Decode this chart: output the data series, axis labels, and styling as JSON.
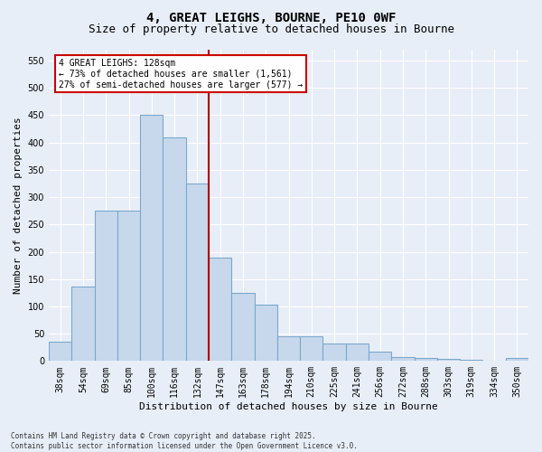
{
  "title": "4, GREAT LEIGHS, BOURNE, PE10 0WF",
  "subtitle": "Size of property relative to detached houses in Bourne",
  "xlabel": "Distribution of detached houses by size in Bourne",
  "ylabel": "Number of detached properties",
  "categories": [
    "38sqm",
    "54sqm",
    "69sqm",
    "85sqm",
    "100sqm",
    "116sqm",
    "132sqm",
    "147sqm",
    "163sqm",
    "178sqm",
    "194sqm",
    "210sqm",
    "225sqm",
    "241sqm",
    "256sqm",
    "272sqm",
    "288sqm",
    "303sqm",
    "319sqm",
    "334sqm",
    "350sqm"
  ],
  "values": [
    35,
    137,
    275,
    275,
    450,
    410,
    325,
    190,
    125,
    103,
    46,
    45,
    32,
    32,
    17,
    8,
    6,
    4,
    2,
    1,
    5
  ],
  "bar_color": "#c8d8ec",
  "bar_edge_color": "#7aa8cc",
  "vline_index": 6,
  "vline_color": "#aa0000",
  "annotation_text": "4 GREAT LEIGHS: 128sqm\n← 73% of detached houses are smaller (1,561)\n27% of semi-detached houses are larger (577) →",
  "annotation_box_facecolor": "#ffffff",
  "annotation_box_edgecolor": "#cc0000",
  "ylim": [
    0,
    570
  ],
  "yticks": [
    0,
    50,
    100,
    150,
    200,
    250,
    300,
    350,
    400,
    450,
    500,
    550
  ],
  "plot_bg_color": "#e8eef8",
  "fig_bg_color": "#e8eef8",
  "grid_color": "#ffffff",
  "footer": "Contains HM Land Registry data © Crown copyright and database right 2025.\nContains public sector information licensed under the Open Government Licence v3.0.",
  "title_fontsize": 10,
  "subtitle_fontsize": 9,
  "ylabel_fontsize": 8,
  "xlabel_fontsize": 8,
  "tick_fontsize": 7,
  "footer_fontsize": 5.5
}
